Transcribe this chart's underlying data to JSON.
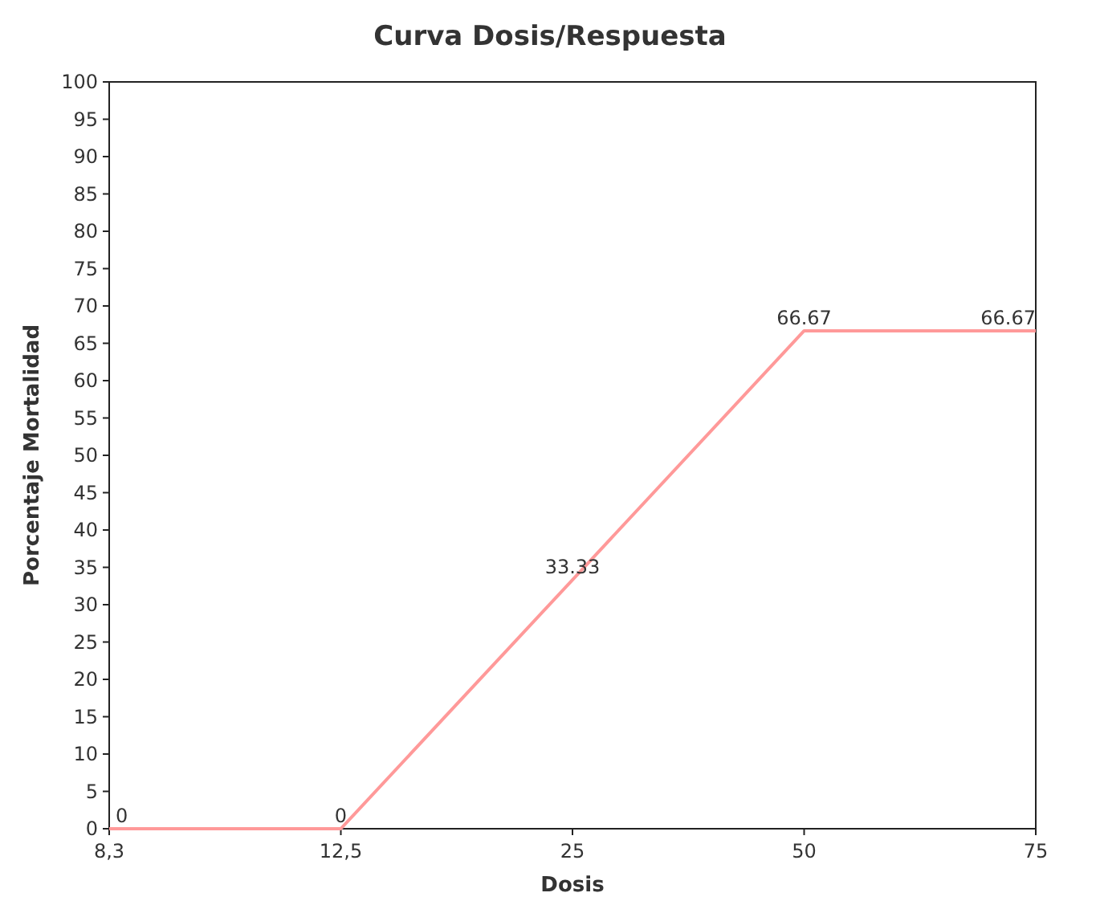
{
  "chart_data": {
    "type": "line",
    "title": "Curva Dosis/Respuesta",
    "xlabel": "Dosis",
    "ylabel": "Porcentaje Mortalidad",
    "categories": [
      "8,3",
      "12,5",
      "25",
      "50",
      "75"
    ],
    "series": [
      {
        "color": "#ff9999",
        "values": [
          0,
          0,
          33.33,
          66.67,
          66.67
        ]
      }
    ],
    "ylim": [
      0,
      100
    ],
    "yticks": [
      0,
      5,
      10,
      15,
      20,
      25,
      30,
      35,
      40,
      45,
      50,
      55,
      60,
      65,
      70,
      75,
      80,
      85,
      90,
      95,
      100
    ],
    "grid": false,
    "marker": "none",
    "line_style": "solid",
    "data_labels": true
  }
}
